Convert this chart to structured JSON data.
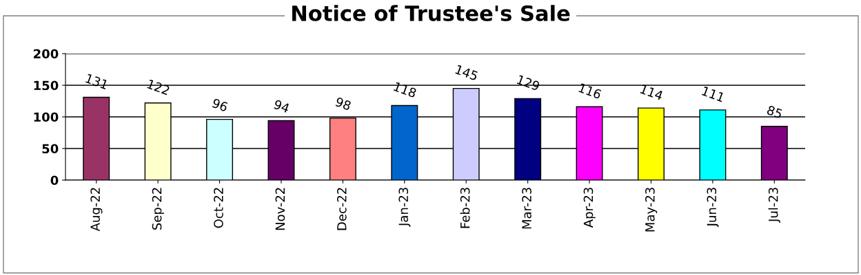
{
  "chart_data": {
    "type": "bar",
    "title": "Notice of Trustee's Sale",
    "categories": [
      "Aug-22",
      "Sep-22",
      "Oct-22",
      "Nov-22",
      "Dec-22",
      "Jan-23",
      "Feb-23",
      "Mar-23",
      "Apr-23",
      "May-23",
      "Jun-23",
      "Jul-23"
    ],
    "values": [
      131,
      122,
      96,
      94,
      98,
      118,
      145,
      129,
      116,
      114,
      111,
      85
    ],
    "colors": [
      "#993366",
      "#ffffcc",
      "#ccffff",
      "#660066",
      "#ff8080",
      "#0066cc",
      "#ccccff",
      "#000080",
      "#ff00ff",
      "#ffff00",
      "#00ffff",
      "#800080"
    ],
    "ylim": [
      0,
      200
    ],
    "yticks": [
      0,
      50,
      100,
      150,
      200
    ],
    "grid": "y",
    "data_labels": true
  }
}
